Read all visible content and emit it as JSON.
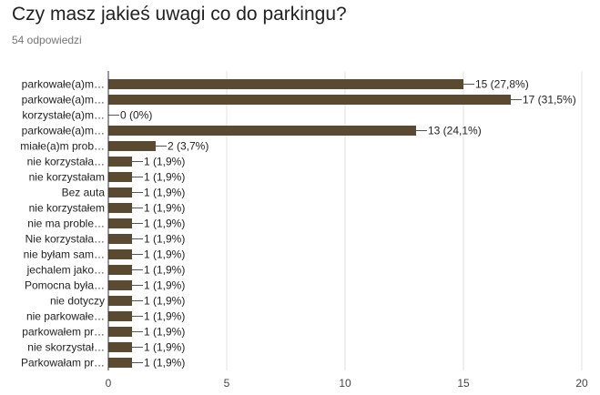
{
  "header": {
    "title": "Czy masz jakieś uwagi co do parkingu?",
    "subtitle": "54 odpowiedzi"
  },
  "colors": {
    "bar": "#5b4a32",
    "grid": "#e0e0e0",
    "axis": "#333333"
  },
  "chart_data": {
    "type": "bar",
    "orientation": "horizontal",
    "categories": [
      "parkowałe(a)m…",
      "parkowałe(a)m…",
      "korzystałe(a)m…",
      "parkowałe(a)m…",
      "miałe(a)m prob…",
      "nie korzystała…",
      "nie korzystałam",
      "Bez auta",
      "nie korzystałem",
      "nie ma proble…",
      "Nie korzystała…",
      "nie byłam sam…",
      "jechalem jako…",
      "Pomocna była…",
      "nie dotyczy",
      "nie parkowałe…",
      "parkowałem pr…",
      "nie skorzystał…",
      "Parkowałam pr…"
    ],
    "values": [
      15,
      17,
      0,
      13,
      2,
      1,
      1,
      1,
      1,
      1,
      1,
      1,
      1,
      1,
      1,
      1,
      1,
      1,
      1
    ],
    "labels": [
      "15 (27,8%)",
      "17 (31,5%)",
      "0 (0%)",
      "13 (24,1%)",
      "2 (3,7%)",
      "1 (1,9%)",
      "1 (1,9%)",
      "1 (1,9%)",
      "1 (1,9%)",
      "1 (1,9%)",
      "1 (1,9%)",
      "1 (1,9%)",
      "1 (1,9%)",
      "1 (1,9%)",
      "1 (1,9%)",
      "1 (1,9%)",
      "1 (1,9%)",
      "1 (1,9%)",
      "1 (1,9%)"
    ],
    "xlim": [
      0,
      20
    ],
    "xticks": [
      0,
      5,
      10,
      15,
      20
    ],
    "grid": true,
    "legend": "none"
  }
}
